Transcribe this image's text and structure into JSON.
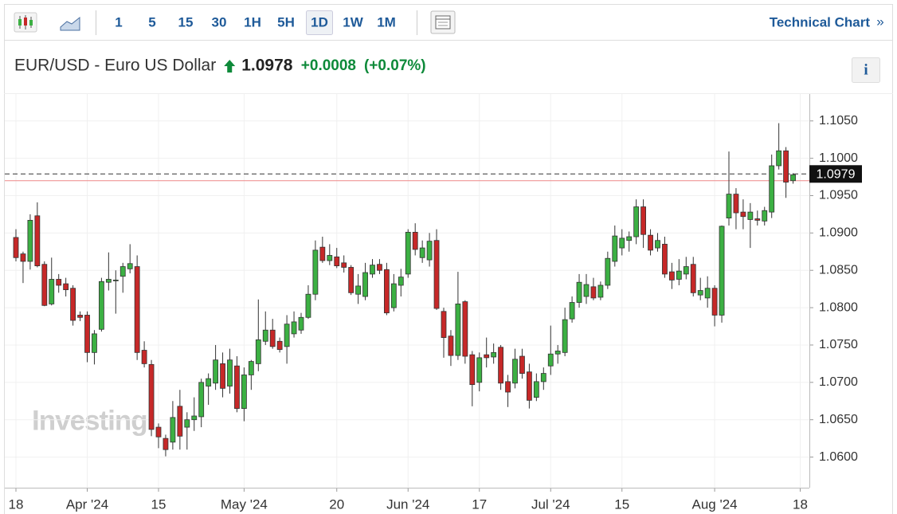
{
  "toolbar": {
    "intervals": [
      "1",
      "5",
      "15",
      "30",
      "1H",
      "5H",
      "1D",
      "1W",
      "1M"
    ],
    "active": "1D",
    "link": "Technical Chart",
    "link_icon": "»"
  },
  "info_button": "i",
  "chart_data": {
    "type": "candlestick",
    "title": "EUR/USD - Euro US Dollar",
    "price": "1.0978",
    "change": "+0.0008",
    "change_percent": "(+0.07%)",
    "watermark": "Investing",
    "up_color": "#3cb043",
    "down_color": "#c62828",
    "current_price": {
      "value": 1.0979,
      "label": "1.0979"
    },
    "ref_line": {
      "value": 1.097,
      "color": "#e88"
    },
    "ylim": [
      1.0559,
      1.1086
    ],
    "yticks": [
      {
        "value": 1.105,
        "label": "1.1050"
      },
      {
        "value": 1.1,
        "label": "1.1000"
      },
      {
        "value": 1.095,
        "label": "1.0950"
      },
      {
        "value": 1.09,
        "label": "1.0900"
      },
      {
        "value": 1.085,
        "label": "1.0850"
      },
      {
        "value": 1.08,
        "label": "1.0800"
      },
      {
        "value": 1.075,
        "label": "1.0750"
      },
      {
        "value": 1.07,
        "label": "1.0700"
      },
      {
        "value": 1.065,
        "label": "1.0650"
      },
      {
        "value": 1.06,
        "label": "1.0600"
      }
    ],
    "grid": true,
    "categories": [
      "18",
      null,
      null,
      null,
      null,
      null,
      null,
      null,
      null,
      null,
      "Apr '24",
      null,
      null,
      null,
      null,
      null,
      null,
      null,
      null,
      null,
      "15",
      null,
      null,
      null,
      null,
      null,
      null,
      null,
      null,
      null,
      null,
      null,
      "May '24",
      null,
      null,
      null,
      null,
      null,
      null,
      null,
      null,
      null,
      null,
      null,
      null,
      "20",
      null,
      null,
      null,
      null,
      null,
      null,
      null,
      null,
      null,
      "Jun '24",
      null,
      null,
      null,
      null,
      null,
      null,
      null,
      null,
      null,
      "17",
      null,
      null,
      null,
      null,
      null,
      null,
      null,
      null,
      null,
      "Jul '24",
      null,
      null,
      null,
      null,
      null,
      null,
      null,
      null,
      null,
      "15",
      null,
      null,
      null,
      null,
      null,
      null,
      null,
      null,
      null,
      null,
      null,
      null,
      "Aug '24",
      null,
      null,
      null,
      null,
      null,
      null,
      null,
      null,
      null,
      null,
      null,
      "18"
    ],
    "open": [
      1.0894,
      1.0872,
      1.0862,
      1.0923,
      1.0858,
      1.0805,
      1.0838,
      1.0832,
      1.0826,
      1.079,
      1.079,
      1.074,
      1.0771,
      1.0834,
      1.0836,
      1.0842,
      1.0852,
      1.0855,
      1.0743,
      1.0724,
      1.064,
      1.0625,
      1.062,
      1.0668,
      1.064,
      1.065,
      1.0654,
      1.0695,
      1.0699,
      1.0725,
      1.0695,
      1.0722,
      1.0665,
      1.071,
      1.0725,
      1.0755,
      1.077,
      1.0755,
      1.0748,
      1.0765,
      1.077,
      1.0787,
      1.0818,
      1.0881,
      1.0863,
      1.0868,
      1.086,
      1.0854,
      1.0818,
      1.0815,
      1.0845,
      1.0858,
      1.0851,
      1.08,
      1.083,
      1.0845,
      1.0901,
      1.0867,
      1.0864,
      1.089,
      1.0795,
      1.0762,
      1.0736,
      1.0808,
      1.0737,
      1.07,
      1.0737,
      1.0734,
      1.0747,
      1.0701,
      1.0699,
      1.0735,
      1.0714,
      1.068,
      1.0701,
      1.0722,
      1.0738,
      1.074,
      1.0785,
      1.0807,
      1.0815,
      1.0828,
      1.0814,
      1.083,
      1.0862,
      1.088,
      1.089,
      1.0895,
      1.0935,
      1.0897,
      1.088,
      1.0885,
      1.0848,
      1.0838,
      1.0845,
      1.0858,
      1.0817,
      1.0813,
      1.0826,
      1.079,
      1.092,
      1.0952,
      1.0928,
      1.0918,
      1.0919,
      1.0916,
      1.0928,
      1.099,
      1.101,
      1.097,
      null
    ],
    "high": [
      1.0905,
      1.0875,
      1.0925,
      1.0941,
      1.0862,
      1.0867,
      1.0845,
      1.084,
      1.083,
      1.0795,
      1.0795,
      1.077,
      1.084,
      1.0874,
      1.085,
      1.086,
      1.0885,
      1.087,
      1.0755,
      1.073,
      1.0645,
      1.063,
      1.0675,
      1.069,
      1.066,
      1.068,
      1.0705,
      1.0712,
      1.075,
      1.074,
      1.0745,
      1.0735,
      1.072,
      1.073,
      1.0811,
      1.0795,
      1.0785,
      1.076,
      1.079,
      1.0795,
      1.0793,
      1.083,
      1.089,
      1.0895,
      1.0885,
      1.088,
      1.087,
      1.0857,
      1.0845,
      1.086,
      1.0865,
      1.0865,
      1.086,
      1.0845,
      1.0852,
      1.0905,
      1.0913,
      1.089,
      1.09,
      1.0905,
      1.08,
      1.077,
      1.0848,
      1.081,
      1.0742,
      1.074,
      1.076,
      1.0752,
      1.075,
      1.071,
      1.0745,
      1.0745,
      1.0725,
      1.0712,
      1.072,
      1.0776,
      1.075,
      1.08,
      1.0815,
      1.0845,
      1.0845,
      1.084,
      1.0835,
      1.0875,
      1.091,
      1.0905,
      1.0902,
      1.0945,
      1.0945,
      1.0905,
      1.09,
      1.0895,
      1.086,
      1.0865,
      1.0868,
      1.0868,
      1.084,
      1.0842,
      1.083,
      1.091,
      1.1009,
      1.096,
      1.0945,
      1.094,
      1.093,
      1.0935,
      1.1005,
      1.1047,
      1.1015,
      1.098,
      null
    ],
    "low": [
      1.0862,
      1.0833,
      1.0851,
      1.0854,
      1.0802,
      1.0803,
      1.082,
      1.0815,
      1.0776,
      1.0782,
      1.0727,
      1.0724,
      1.0768,
      1.0823,
      1.0792,
      1.082,
      1.0846,
      1.073,
      1.072,
      1.0628,
      1.0612,
      1.0601,
      1.061,
      1.061,
      1.061,
      1.0635,
      1.064,
      1.067,
      1.069,
      1.068,
      1.0685,
      1.066,
      1.0648,
      1.069,
      1.0715,
      1.075,
      1.0745,
      1.074,
      1.0725,
      1.076,
      1.0765,
      1.0785,
      1.081,
      1.086,
      1.0857,
      1.0853,
      1.0847,
      1.0817,
      1.0805,
      1.081,
      1.084,
      1.0845,
      1.079,
      1.0795,
      1.0815,
      1.084,
      1.087,
      1.086,
      1.0855,
      1.0797,
      1.0733,
      1.0722,
      1.073,
      1.0725,
      1.0668,
      1.0688,
      1.072,
      1.0725,
      1.069,
      1.0667,
      1.0692,
      1.0705,
      1.0665,
      1.0675,
      1.069,
      1.071,
      1.0725,
      1.0735,
      1.078,
      1.08,
      1.0805,
      1.081,
      1.081,
      1.0825,
      1.0855,
      1.087,
      1.0875,
      1.0885,
      1.088,
      1.087,
      1.0875,
      1.084,
      1.0825,
      1.083,
      1.0838,
      1.0815,
      1.081,
      1.08,
      1.0775,
      1.078,
      1.091,
      1.0905,
      1.0905,
      1.088,
      1.091,
      1.091,
      1.092,
      1.0985,
      1.0947,
      1.0966,
      null
    ],
    "close": [
      1.0867,
      1.0862,
      1.0917,
      1.0856,
      1.0803,
      1.0838,
      1.083,
      1.0824,
      1.0783,
      1.0787,
      1.074,
      1.0765,
      1.0835,
      1.0838,
      1.0837,
      1.0855,
      1.0859,
      1.074,
      1.0725,
      1.0637,
      1.0627,
      1.061,
      1.0653,
      1.0628,
      1.065,
      1.0655,
      1.07,
      1.0705,
      1.073,
      1.0692,
      1.073,
      1.0665,
      1.071,
      1.0728,
      1.0757,
      1.077,
      1.0748,
      1.0744,
      1.0778,
      1.0781,
      1.0787,
      1.0818,
      1.0877,
      1.0863,
      1.087,
      1.0856,
      1.0854,
      1.082,
      1.0829,
      1.0847,
      1.0857,
      1.085,
      1.0793,
      1.0832,
      1.0841,
      1.0901,
      1.0878,
      1.088,
      1.0889,
      1.0799,
      1.076,
      1.0736,
      1.0805,
      1.0735,
      1.0697,
      1.0733,
      1.0733,
      1.074,
      1.0699,
      1.0687,
      1.0731,
      1.0712,
      1.0676,
      1.0701,
      1.0712,
      1.0738,
      1.0742,
      1.0784,
      1.0807,
      1.0834,
      1.0831,
      1.0813,
      1.083,
      1.0866,
      1.0896,
      1.0893,
      1.0895,
      1.0935,
      1.0898,
      1.0877,
      1.089,
      1.0845,
      1.0837,
      1.0849,
      1.0855,
      1.082,
      1.0823,
      1.0826,
      1.079,
      1.0909,
      1.0952,
      1.0927,
      1.0922,
      1.0928,
      1.0917,
      1.093,
      1.099,
      1.101,
      1.0968,
      1.0978,
      null
    ]
  }
}
